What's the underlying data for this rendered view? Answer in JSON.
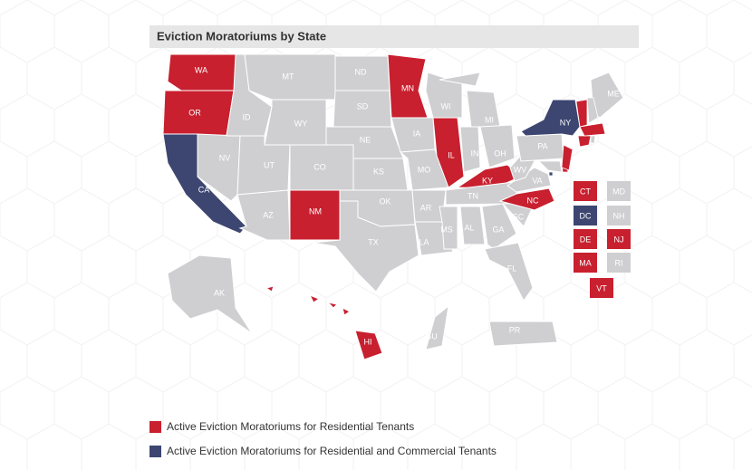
{
  "title": "Eviction Moratoriums by State",
  "legend": [
    {
      "label": "Active Eviction Moratoriums for Residential Tenants",
      "color": "#c8202f"
    },
    {
      "label": "Active Eviction Moratoriums for Residential and Commercial Tenants",
      "color": "#3d4671"
    }
  ],
  "states": [
    {
      "label": "WA",
      "color": "#c8202f"
    },
    {
      "label": "OR",
      "color": "#c8202f"
    },
    {
      "label": "CA",
      "color": "#3d4671"
    },
    {
      "label": "NV",
      "color": "#cfcfd1"
    },
    {
      "label": "ID",
      "color": "#cfcfd1"
    },
    {
      "label": "MT",
      "color": "#cfcfd1"
    },
    {
      "label": "WY",
      "color": "#cfcfd1"
    },
    {
      "label": "UT",
      "color": "#cfcfd1"
    },
    {
      "label": "CO",
      "color": "#cfcfd1"
    },
    {
      "label": "AZ",
      "color": "#cfcfd1"
    },
    {
      "label": "NM",
      "color": "#c8202f"
    },
    {
      "label": "ND",
      "color": "#cfcfd1"
    },
    {
      "label": "SD",
      "color": "#cfcfd1"
    },
    {
      "label": "NE",
      "color": "#cfcfd1"
    },
    {
      "label": "KS",
      "color": "#cfcfd1"
    },
    {
      "label": "OK",
      "color": "#cfcfd1"
    },
    {
      "label": "TX",
      "color": "#cfcfd1"
    },
    {
      "label": "MN",
      "color": "#c8202f"
    },
    {
      "label": "IA",
      "color": "#cfcfd1"
    },
    {
      "label": "MO",
      "color": "#cfcfd1"
    },
    {
      "label": "AR",
      "color": "#cfcfd1"
    },
    {
      "label": "LA",
      "color": "#cfcfd1"
    },
    {
      "label": "WI",
      "color": "#cfcfd1"
    },
    {
      "label": "IL",
      "color": "#c8202f"
    },
    {
      "label": "MI",
      "color": "#cfcfd1"
    },
    {
      "label": "IN",
      "color": "#cfcfd1"
    },
    {
      "label": "OH",
      "color": "#cfcfd1"
    },
    {
      "label": "KY",
      "color": "#c8202f"
    },
    {
      "label": "TN",
      "color": "#cfcfd1"
    },
    {
      "label": "MS",
      "color": "#cfcfd1"
    },
    {
      "label": "AL",
      "color": "#cfcfd1"
    },
    {
      "label": "GA",
      "color": "#cfcfd1"
    },
    {
      "label": "FL",
      "color": "#cfcfd1"
    },
    {
      "label": "SC",
      "color": "#cfcfd1"
    },
    {
      "label": "NC",
      "color": "#c8202f"
    },
    {
      "label": "VA",
      "color": "#cfcfd1"
    },
    {
      "label": "WV",
      "color": "#cfcfd1"
    },
    {
      "label": "PA",
      "color": "#cfcfd1"
    },
    {
      "label": "NY",
      "color": "#3d4671"
    },
    {
      "label": "ME",
      "color": "#cfcfd1"
    },
    {
      "label": "AK",
      "color": "#cfcfd1"
    },
    {
      "label": "HI",
      "color": "#c8202f"
    },
    {
      "label": "GU",
      "color": "#cfcfd1"
    },
    {
      "label": "PR",
      "color": "#cfcfd1"
    }
  ],
  "small_states": [
    {
      "label": "CT",
      "color": "#c8202f"
    },
    {
      "label": "MD",
      "color": "#cfcfd1"
    },
    {
      "label": "DC",
      "color": "#3d4671"
    },
    {
      "label": "NH",
      "color": "#cfcfd1"
    },
    {
      "label": "DE",
      "color": "#c8202f"
    },
    {
      "label": "NJ",
      "color": "#c8202f"
    },
    {
      "label": "MA",
      "color": "#c8202f"
    },
    {
      "label": "RI",
      "color": "#cfcfd1"
    },
    {
      "label": "VT",
      "color": "#c8202f"
    }
  ]
}
